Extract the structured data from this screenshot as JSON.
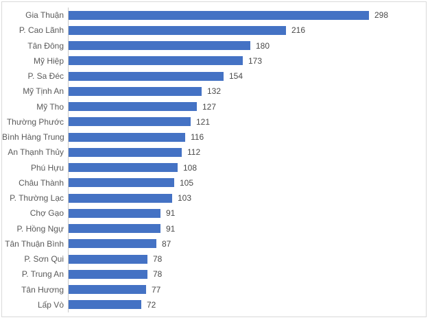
{
  "chart_data": {
    "type": "bar",
    "orientation": "horizontal",
    "title": "",
    "xlabel": "",
    "ylabel": "",
    "grid": false,
    "legend": "none",
    "data_labels": true,
    "sort_order": "descending",
    "bar_color": "#4472C4",
    "category_label_color": "#595959",
    "value_label_color": "#484848",
    "axis_line_color": "#C9C9C9",
    "xlim": [
      0,
      298
    ],
    "categories": [
      "Gia Thuận",
      "P. Cao Lãnh",
      "Tân Đông",
      "Mỹ Hiệp",
      "P. Sa Đéc",
      "Mỹ Tịnh An",
      "Mỹ Tho",
      "Thường Phước",
      "Bình Hàng Trung",
      "An Thạnh Thủy",
      "Phú Hựu",
      "Châu Thành",
      "P. Thường Lạc",
      "Chợ Gạo",
      "P. Hồng Ngự",
      "Tân Thuận Bình",
      "P. Sơn Qui",
      "P. Trung An",
      "Tân Hương",
      "Lấp Vò"
    ],
    "values": [
      298,
      216,
      180,
      173,
      154,
      132,
      127,
      121,
      116,
      112,
      108,
      105,
      103,
      91,
      91,
      87,
      78,
      78,
      77,
      72
    ]
  }
}
